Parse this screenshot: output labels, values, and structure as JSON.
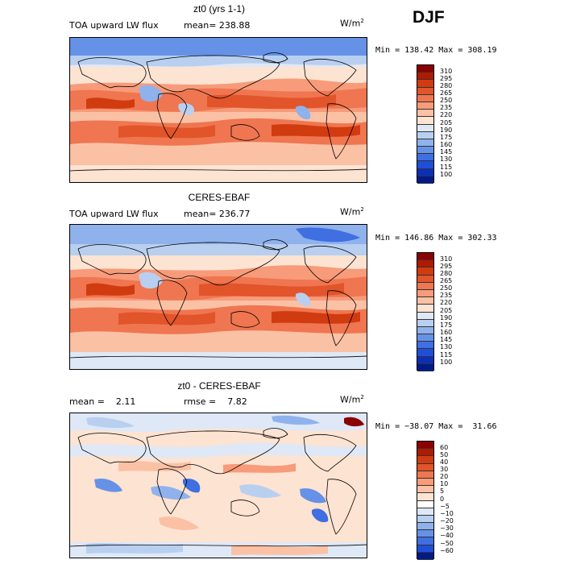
{
  "season_label": "DJF",
  "panels": [
    {
      "title": "zt0 (yrs 1-1)",
      "left_label": "TOA upward LW flux",
      "stat_label": "mean= 238.88",
      "units_base": "W/m",
      "units_exp": "2",
      "minmax": "Min = 138.42 Max = 308.19",
      "colorbar": {
        "labels": [
          "310",
          "295",
          "280",
          "265",
          "250",
          "235",
          "220",
          "205",
          "190",
          "175",
          "160",
          "145",
          "130",
          "115",
          "100"
        ],
        "colors": [
          "#8b0000",
          "#b01a00",
          "#d13b10",
          "#e2542a",
          "#ef7650",
          "#f79b7a",
          "#fbc1a5",
          "#fde3d2",
          "#dfe8f7",
          "#b8cff0",
          "#8fb2ec",
          "#6592e6",
          "#3f6fe0",
          "#1f4fd8",
          "#0b2fb8",
          "#001a8a"
        ]
      }
    },
    {
      "title": "CERES-EBAF",
      "left_label": "TOA upward LW flux",
      "stat_label": "mean= 236.77",
      "units_base": "W/m",
      "units_exp": "2",
      "minmax": "Min = 146.86 Max = 302.33",
      "colorbar": {
        "labels": [
          "310",
          "295",
          "280",
          "265",
          "250",
          "235",
          "220",
          "205",
          "190",
          "175",
          "160",
          "145",
          "130",
          "115",
          "100"
        ],
        "colors": [
          "#8b0000",
          "#b01a00",
          "#d13b10",
          "#e2542a",
          "#ef7650",
          "#f79b7a",
          "#fbc1a5",
          "#fde3d2",
          "#dfe8f7",
          "#b8cff0",
          "#8fb2ec",
          "#6592e6",
          "#3f6fe0",
          "#1f4fd8",
          "#0b2fb8",
          "#001a8a"
        ]
      }
    },
    {
      "title": "zt0 - CERES-EBAF",
      "left_label": "mean =    2.11",
      "stat_label": "rmse =    7.82",
      "units_base": "W/m",
      "units_exp": "2",
      "minmax": "Min = −38.07 Max =  31.66",
      "colorbar": {
        "labels": [
          "60",
          "50",
          "40",
          "30",
          "20",
          "10",
          "5",
          "0",
          "−5",
          "−10",
          "−20",
          "−30",
          "−40",
          "−50",
          "−60"
        ],
        "colors": [
          "#8b0000",
          "#b01a00",
          "#d13b10",
          "#e2542a",
          "#ef7650",
          "#f79b7a",
          "#fbc1a5",
          "#fde3d2",
          "#ffffff",
          "#dfe8f7",
          "#b8cff0",
          "#8fb2ec",
          "#6592e6",
          "#3f6fe0",
          "#1f4fd8",
          "#001a8a"
        ]
      }
    }
  ]
}
